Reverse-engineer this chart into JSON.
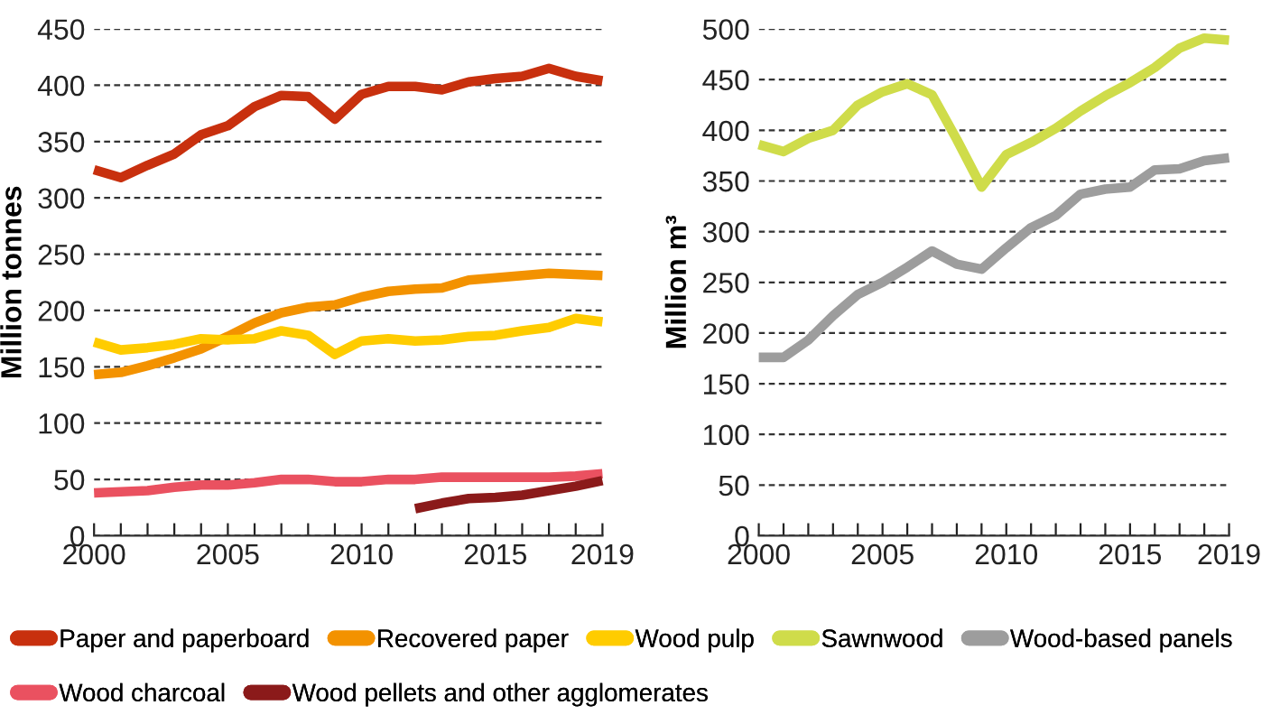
{
  "chart_data": [
    {
      "type": "line",
      "ylabel": "Million tonnes",
      "x": [
        2000,
        2001,
        2002,
        2003,
        2004,
        2005,
        2006,
        2007,
        2008,
        2009,
        2010,
        2011,
        2012,
        2013,
        2014,
        2015,
        2016,
        2017,
        2018,
        2019
      ],
      "xlim": [
        2000,
        2019
      ],
      "xticks": [
        2000,
        {
          "value": 2001,
          "label": null
        },
        {
          "value": 2002,
          "label": null
        },
        {
          "value": 2003,
          "label": null
        },
        {
          "value": 2004,
          "label": null
        },
        2005,
        {
          "value": 2006,
          "label": null
        },
        {
          "value": 2007,
          "label": null
        },
        {
          "value": 2008,
          "label": null
        },
        {
          "value": 2009,
          "label": null
        },
        2010,
        {
          "value": 2011,
          "label": null
        },
        {
          "value": 2012,
          "label": null
        },
        {
          "value": 2013,
          "label": null
        },
        {
          "value": 2014,
          "label": null
        },
        2015,
        {
          "value": 2016,
          "label": null
        },
        {
          "value": 2017,
          "label": null
        },
        {
          "value": 2018,
          "label": null
        },
        2019
      ],
      "ylim": [
        0,
        450
      ],
      "yticks": [
        0,
        50,
        100,
        150,
        200,
        250,
        300,
        350,
        400,
        450
      ],
      "grid": "y",
      "line_style": "solid",
      "marker": "none",
      "legend": "bottom",
      "series": [
        {
          "name": "Paper and paperboard",
          "color": "#c8300e",
          "values": [
            325,
            318,
            329,
            339,
            356,
            364,
            381,
            391,
            390,
            370,
            392,
            399,
            399,
            396,
            403,
            406,
            408,
            415,
            408,
            404
          ]
        },
        {
          "name": "Recovered paper",
          "color": "#f39200",
          "values": [
            143,
            145,
            151,
            158,
            166,
            177,
            189,
            198,
            203,
            205,
            212,
            217,
            219,
            220,
            227,
            229,
            231,
            233,
            232,
            231
          ]
        },
        {
          "name": "Wood pulp",
          "color": "#ffcc00",
          "values": [
            172,
            165,
            167,
            170,
            175,
            174,
            175,
            182,
            178,
            161,
            173,
            175,
            173,
            174,
            177,
            178,
            182,
            185,
            193,
            190
          ]
        },
        {
          "name": "Wood charcoal",
          "color": "#ea5160",
          "values": [
            38,
            39,
            40,
            43,
            45,
            45,
            47,
            50,
            50,
            48,
            48,
            50,
            50,
            52,
            52,
            52,
            52,
            52,
            53,
            55
          ]
        },
        {
          "name": "Wood pellets and other agglomerates",
          "color": "#8b1a1a",
          "values": [
            null,
            null,
            null,
            null,
            null,
            null,
            null,
            null,
            null,
            null,
            null,
            null,
            24,
            29,
            33,
            34,
            36,
            40,
            44,
            49
          ]
        }
      ]
    },
    {
      "type": "line",
      "ylabel": "Million m³",
      "x": [
        2000,
        2001,
        2002,
        2003,
        2004,
        2005,
        2006,
        2007,
        2008,
        2009,
        2010,
        2011,
        2012,
        2013,
        2014,
        2015,
        2016,
        2017,
        2018,
        2019
      ],
      "xlim": [
        2000,
        2019
      ],
      "xticks": [
        2000,
        {
          "value": 2001,
          "label": null
        },
        {
          "value": 2002,
          "label": null
        },
        {
          "value": 2003,
          "label": null
        },
        {
          "value": 2004,
          "label": null
        },
        2005,
        {
          "value": 2006,
          "label": null
        },
        {
          "value": 2007,
          "label": null
        },
        {
          "value": 2008,
          "label": null
        },
        {
          "value": 2009,
          "label": null
        },
        2010,
        {
          "value": 2011,
          "label": null
        },
        {
          "value": 2012,
          "label": null
        },
        {
          "value": 2013,
          "label": null
        },
        {
          "value": 2014,
          "label": null
        },
        2015,
        {
          "value": 2016,
          "label": null
        },
        {
          "value": 2017,
          "label": null
        },
        {
          "value": 2018,
          "label": null
        },
        2019
      ],
      "ylim": [
        0,
        500
      ],
      "yticks": [
        0,
        50,
        100,
        150,
        200,
        250,
        300,
        350,
        400,
        450,
        500
      ],
      "grid": "y",
      "line_style": "solid",
      "marker": "none",
      "legend": "bottom",
      "series": [
        {
          "name": "Sawnwood",
          "color": "#cfdc4a",
          "values": [
            386,
            379,
            392,
            400,
            425,
            438,
            446,
            435,
            391,
            344,
            376,
            388,
            402,
            419,
            434,
            447,
            462,
            481,
            491,
            489
          ]
        },
        {
          "name": "Wood-based panels",
          "color": "#9d9d9d",
          "values": [
            176,
            176,
            193,
            217,
            238,
            250,
            265,
            281,
            268,
            263,
            284,
            304,
            316,
            337,
            342,
            344,
            361,
            362,
            370,
            373
          ]
        }
      ]
    }
  ]
}
